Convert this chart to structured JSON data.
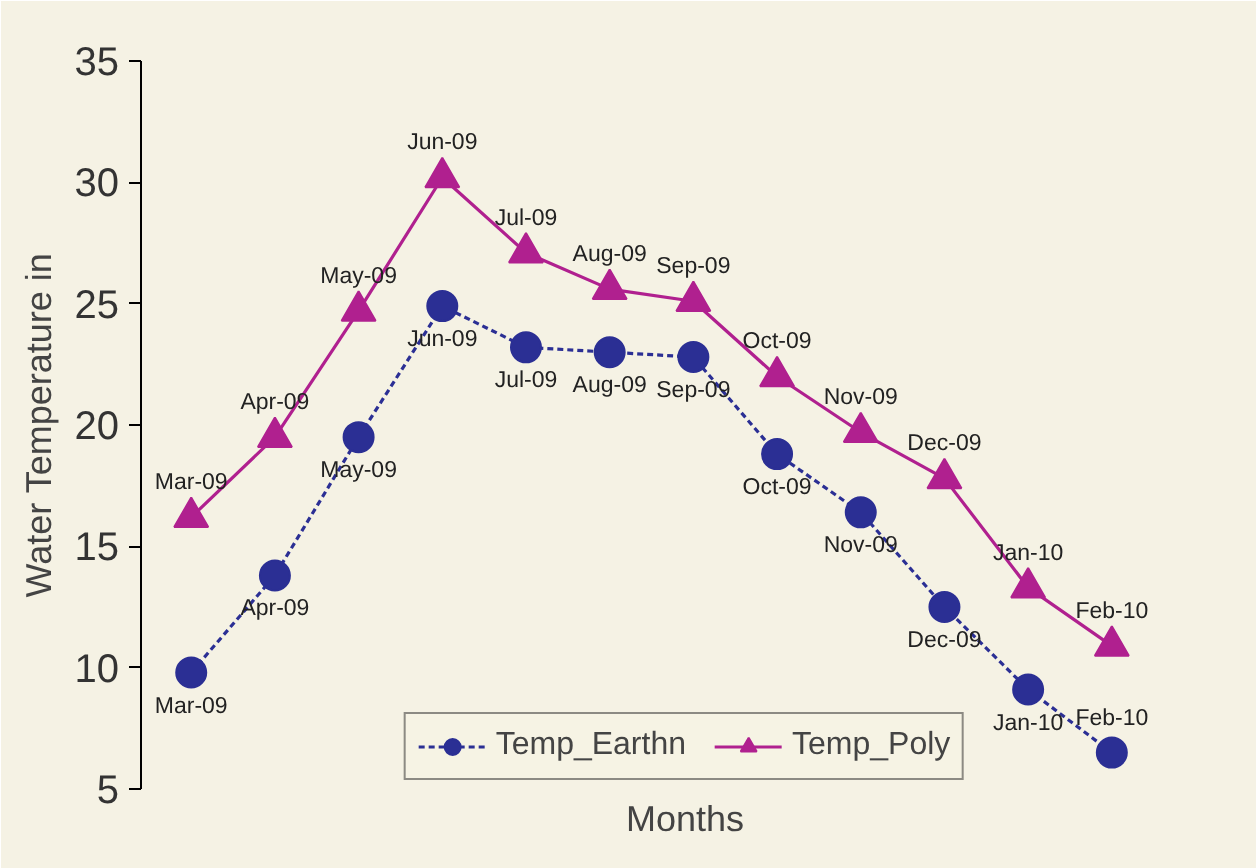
{
  "chart_data": {
    "type": "line",
    "xlabel": "Months",
    "ylabel": "Water Temperature in",
    "categories": [
      "Mar-09",
      "Apr-09",
      "May-09",
      "Jun-09",
      "Jul-09",
      "Aug-09",
      "Sep-09",
      "Oct-09",
      "Nov-09",
      "Dec-09",
      "Jan-10",
      "Feb-10"
    ],
    "series": [
      {
        "name": "Temp_Earthn",
        "color": "#2b2f94",
        "marker": "circle",
        "line_style": "dashed",
        "values": [
          9.8,
          13.8,
          19.5,
          24.9,
          23.2,
          23.0,
          22.8,
          18.8,
          16.4,
          12.5,
          9.1,
          6.5
        ]
      },
      {
        "name": "Temp_Poly",
        "color": "#b0208f",
        "marker": "triangle",
        "line_style": "solid",
        "values": [
          16.2,
          19.5,
          24.7,
          30.2,
          27.1,
          25.6,
          25.1,
          22.0,
          19.7,
          17.8,
          13.3,
          10.9
        ]
      }
    ],
    "ylim": [
      5,
      35
    ],
    "yticks": [
      5,
      10,
      15,
      20,
      25,
      30,
      35
    ],
    "grid": false,
    "legend": "bottom",
    "tick_labels": "y"
  }
}
